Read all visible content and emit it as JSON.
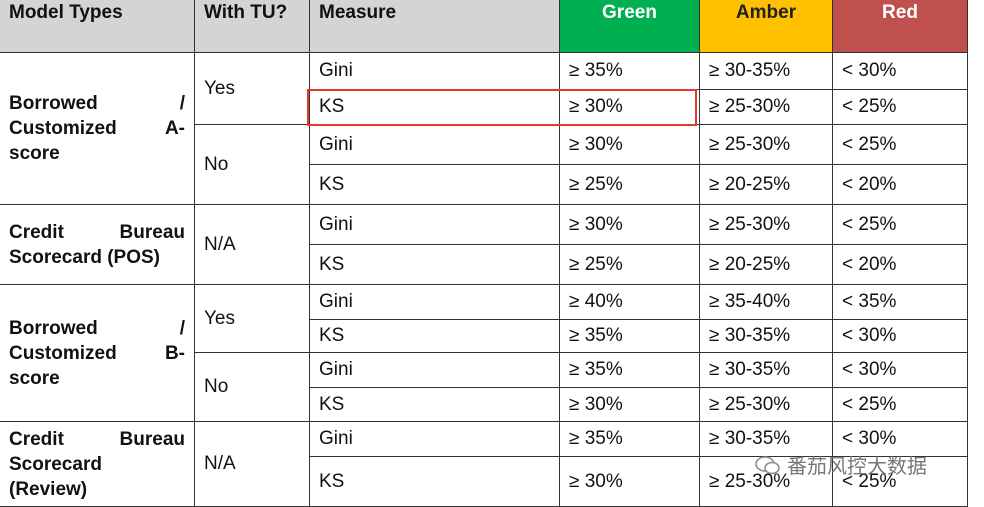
{
  "header": [
    "Model Types",
    "With TU?",
    "Measure",
    "Green",
    "Amber",
    "Red"
  ],
  "groups": [
    {
      "model_type": [
        "Borrowed /",
        "Customized A-",
        "score"
      ],
      "subgroups": [
        {
          "with_tu": "Yes",
          "rows": [
            {
              "measure": "Gini",
              "green": "≥ 35%",
              "amber": "≥ 30-35%",
              "red": "< 30%"
            },
            {
              "measure": "KS",
              "green": "≥ 30%",
              "amber": "≥ 25-30%",
              "red": "< 25%"
            }
          ]
        },
        {
          "with_tu": "No",
          "rows": [
            {
              "measure": "Gini",
              "green": "≥ 30%",
              "amber": "≥ 25-30%",
              "red": "< 25%"
            },
            {
              "measure": "KS",
              "green": "≥ 25%",
              "amber": "≥ 20-25%",
              "red": "< 20%"
            }
          ]
        }
      ]
    },
    {
      "model_type": [
        "Credit Bureau",
        "Scorecard (POS)"
      ],
      "subgroups": [
        {
          "with_tu": "N/A",
          "rows": [
            {
              "measure": "Gini",
              "green": "≥ 30%",
              "amber": "≥ 25-30%",
              "red": "< 25%"
            },
            {
              "measure": "KS",
              "green": "≥ 25%",
              "amber": "≥ 20-25%",
              "red": "< 20%"
            }
          ]
        }
      ]
    },
    {
      "model_type": [
        "Borrowed /",
        "Customized B-",
        "score"
      ],
      "subgroups": [
        {
          "with_tu": "Yes",
          "rows": [
            {
              "measure": "Gini",
              "green": "≥ 40%",
              "amber": "≥ 35-40%",
              "red": "< 35%"
            },
            {
              "measure": "KS",
              "green": "≥ 35%",
              "amber": "≥ 30-35%",
              "red": "< 30%"
            }
          ]
        },
        {
          "with_tu": "No",
          "rows": [
            {
              "measure": "Gini",
              "green": "≥ 35%",
              "amber": "≥ 30-35%",
              "red": "< 30%"
            },
            {
              "measure": "KS",
              "green": "≥ 30%",
              "amber": "≥ 25-30%",
              "red": "< 25%"
            }
          ]
        }
      ]
    },
    {
      "model_type": [
        "Credit Bureau",
        "Scorecard",
        "(Review)"
      ],
      "subgroups": [
        {
          "with_tu": "N/A",
          "rows": [
            {
              "measure": "Gini",
              "green": "≥ 35%",
              "amber": "≥ 30-35%",
              "red": "< 30%"
            },
            {
              "measure": "KS",
              "green": "≥ 30%",
              "amber": "≥ 25-30%",
              "red": "< 25%"
            }
          ]
        }
      ]
    }
  ],
  "watermark": "番茄风控大数据"
}
